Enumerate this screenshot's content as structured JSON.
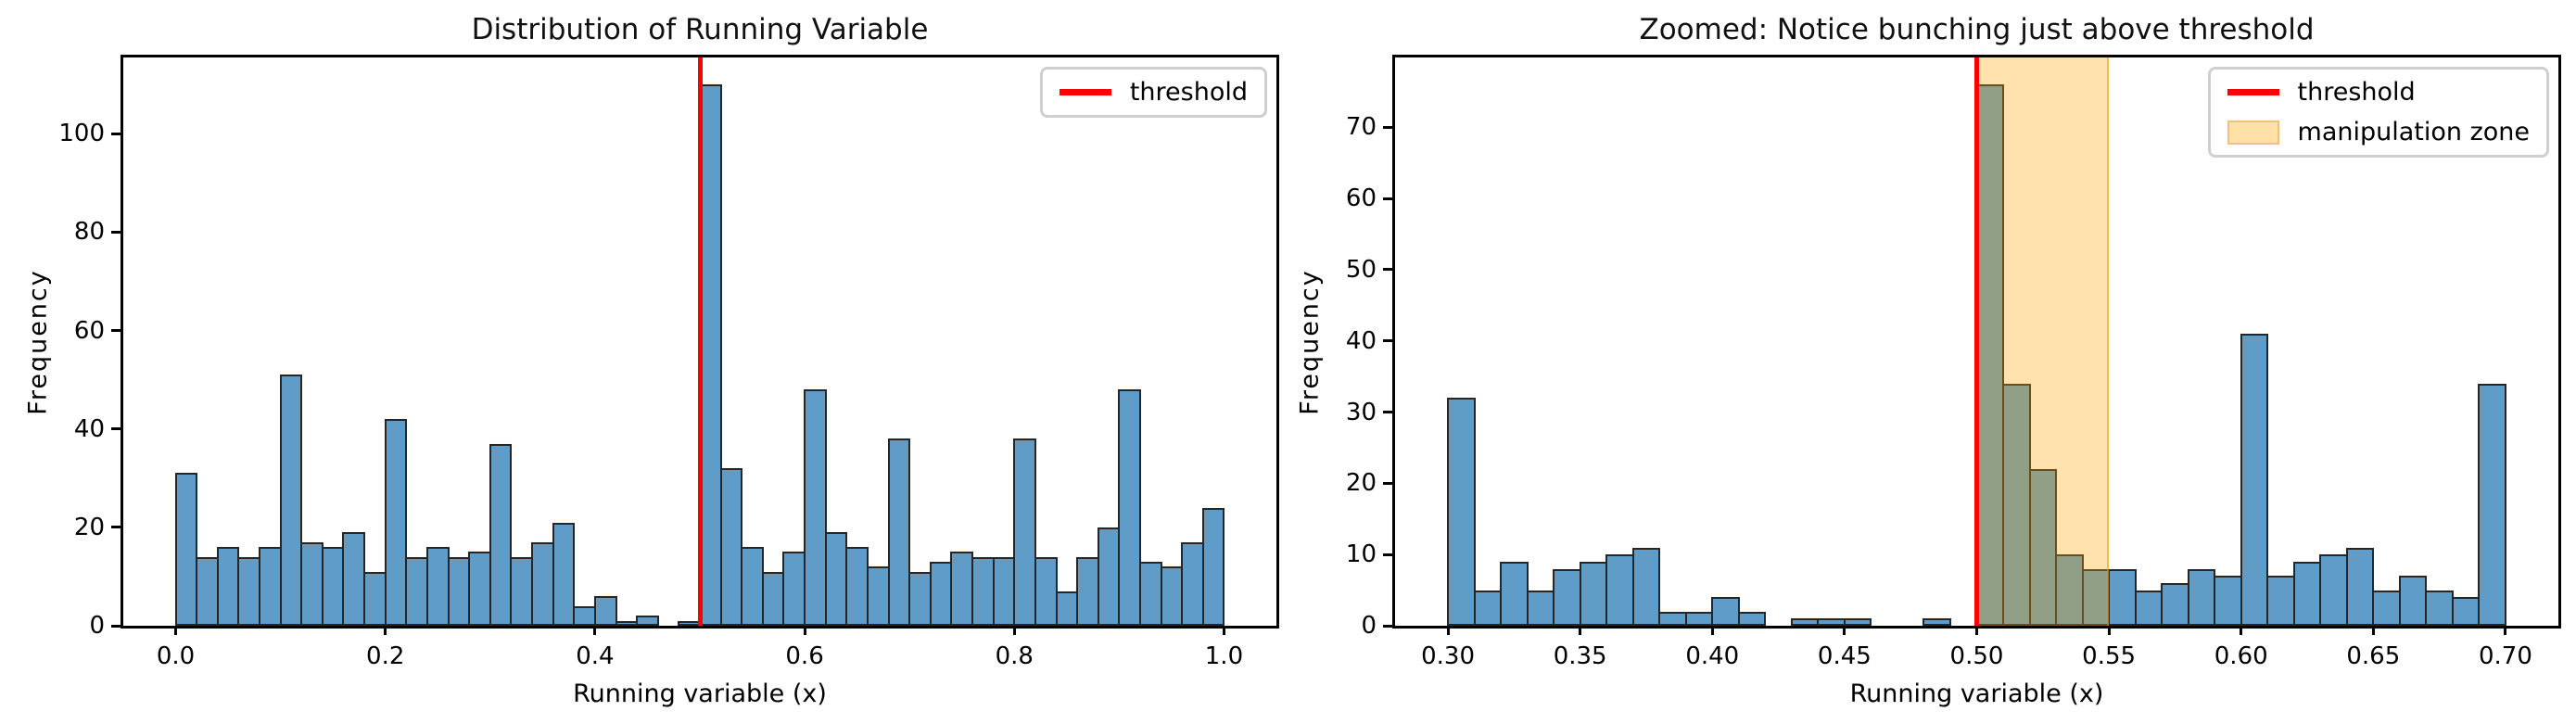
{
  "figure": {
    "background": "#ffffff"
  },
  "palette": {
    "bar_fill": "#5f9cc8",
    "bar_edge": "#262626",
    "threshold_red": "#ff0000",
    "zone_orange": "#ffa600",
    "axis_black": "#000000",
    "legend_border": "#cfcfcf"
  },
  "chart_data": [
    {
      "type": "bar",
      "title": "Distribution of Running Variable",
      "xlabel": "Running variable (x)",
      "ylabel": "Frequency",
      "bin_start": 0.0,
      "bin_width": 0.02,
      "xlim": [
        -0.05,
        1.05
      ],
      "ylim": [
        0,
        115.5
      ],
      "grid": false,
      "legend_position": "upper right",
      "xticks": [
        {
          "value": 0.0,
          "label": "0.0"
        },
        {
          "value": 0.2,
          "label": "0.2"
        },
        {
          "value": 0.4,
          "label": "0.4"
        },
        {
          "value": 0.6,
          "label": "0.6"
        },
        {
          "value": 0.8,
          "label": "0.8"
        },
        {
          "value": 1.0,
          "label": "1.0"
        }
      ],
      "yticks": [
        {
          "value": 0,
          "label": "0"
        },
        {
          "value": 20,
          "label": "20"
        },
        {
          "value": 40,
          "label": "40"
        },
        {
          "value": 60,
          "label": "60"
        },
        {
          "value": 80,
          "label": "80"
        },
        {
          "value": 100,
          "label": "100"
        }
      ],
      "values": [
        31,
        14,
        16,
        14,
        16,
        51,
        17,
        16,
        19,
        11,
        42,
        14,
        16,
        14,
        15,
        37,
        14,
        17,
        21,
        4,
        6,
        1,
        2,
        0,
        1,
        110,
        32,
        16,
        11,
        15,
        48,
        19,
        16,
        12,
        38,
        11,
        13,
        15,
        14,
        14,
        38,
        14,
        7,
        14,
        20,
        48,
        13,
        12,
        17,
        24
      ],
      "threshold_x": 0.5,
      "legend": [
        {
          "label": "threshold",
          "swatch": "line"
        }
      ]
    },
    {
      "type": "bar",
      "title": "Zoomed: Notice bunching just above threshold",
      "xlabel": "Running variable (x)",
      "ylabel": "Frequency",
      "bin_start": 0.3,
      "bin_width": 0.01,
      "xlim": [
        0.28,
        0.72
      ],
      "ylim": [
        0,
        79.8
      ],
      "grid": false,
      "legend_position": "upper right",
      "xticks": [
        {
          "value": 0.3,
          "label": "0.30"
        },
        {
          "value": 0.35,
          "label": "0.35"
        },
        {
          "value": 0.4,
          "label": "0.40"
        },
        {
          "value": 0.45,
          "label": "0.45"
        },
        {
          "value": 0.5,
          "label": "0.50"
        },
        {
          "value": 0.55,
          "label": "0.55"
        },
        {
          "value": 0.6,
          "label": "0.60"
        },
        {
          "value": 0.65,
          "label": "0.65"
        },
        {
          "value": 0.7,
          "label": "0.70"
        }
      ],
      "yticks": [
        {
          "value": 0,
          "label": "0"
        },
        {
          "value": 10,
          "label": "10"
        },
        {
          "value": 20,
          "label": "20"
        },
        {
          "value": 30,
          "label": "30"
        },
        {
          "value": 40,
          "label": "40"
        },
        {
          "value": 50,
          "label": "50"
        },
        {
          "value": 60,
          "label": "60"
        },
        {
          "value": 70,
          "label": "70"
        }
      ],
      "values": [
        32,
        5,
        9,
        5,
        8,
        9,
        10,
        11,
        2,
        2,
        4,
        2,
        0,
        1,
        1,
        1,
        0,
        0,
        1,
        0,
        76,
        34,
        22,
        10,
        8,
        8,
        5,
        6,
        8,
        7,
        41,
        7,
        9,
        10,
        11,
        5,
        7,
        5,
        4,
        34
      ],
      "threshold_x": 0.5,
      "manipulation_zone": {
        "from": 0.5,
        "to": 0.55
      },
      "legend": [
        {
          "label": "threshold",
          "swatch": "line"
        },
        {
          "label": "manipulation zone",
          "swatch": "patch"
        }
      ]
    }
  ]
}
